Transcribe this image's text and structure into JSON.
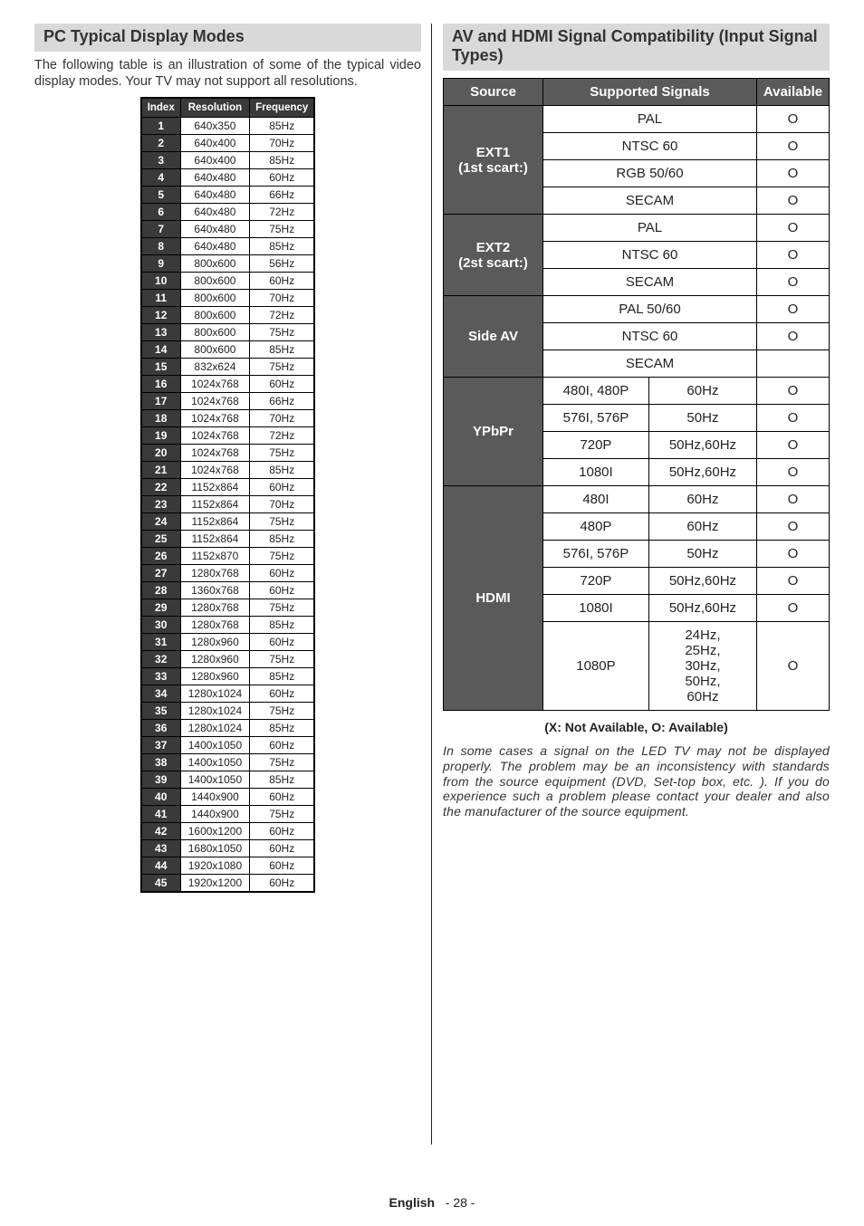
{
  "left": {
    "header": "PC Typical Display Modes",
    "intro": "The following table is an illustration of some of the typical video display modes. Your TV may not support all resolutions.",
    "columns": [
      "Index",
      "Resolution",
      "Frequency"
    ],
    "rows": [
      [
        "1",
        "640x350",
        "85Hz"
      ],
      [
        "2",
        "640x400",
        "70Hz"
      ],
      [
        "3",
        "640x400",
        "85Hz"
      ],
      [
        "4",
        "640x480",
        "60Hz"
      ],
      [
        "5",
        "640x480",
        "66Hz"
      ],
      [
        "6",
        "640x480",
        "72Hz"
      ],
      [
        "7",
        "640x480",
        "75Hz"
      ],
      [
        "8",
        "640x480",
        "85Hz"
      ],
      [
        "9",
        "800x600",
        "56Hz"
      ],
      [
        "10",
        "800x600",
        "60Hz"
      ],
      [
        "11",
        "800x600",
        "70Hz"
      ],
      [
        "12",
        "800x600",
        "72Hz"
      ],
      [
        "13",
        "800x600",
        "75Hz"
      ],
      [
        "14",
        "800x600",
        "85Hz"
      ],
      [
        "15",
        "832x624",
        "75Hz"
      ],
      [
        "16",
        "1024x768",
        "60Hz"
      ],
      [
        "17",
        "1024x768",
        "66Hz"
      ],
      [
        "18",
        "1024x768",
        "70Hz"
      ],
      [
        "19",
        "1024x768",
        "72Hz"
      ],
      [
        "20",
        "1024x768",
        "75Hz"
      ],
      [
        "21",
        "1024x768",
        "85Hz"
      ],
      [
        "22",
        "1152x864",
        "60Hz"
      ],
      [
        "23",
        "1152x864",
        "70Hz"
      ],
      [
        "24",
        "1152x864",
        "75Hz"
      ],
      [
        "25",
        "1152x864",
        "85Hz"
      ],
      [
        "26",
        "1152x870",
        "75Hz"
      ],
      [
        "27",
        "1280x768",
        "60Hz"
      ],
      [
        "28",
        "1360x768",
        "60Hz"
      ],
      [
        "29",
        "1280x768",
        "75Hz"
      ],
      [
        "30",
        "1280x768",
        "85Hz"
      ],
      [
        "31",
        "1280x960",
        "60Hz"
      ],
      [
        "32",
        "1280x960",
        "75Hz"
      ],
      [
        "33",
        "1280x960",
        "85Hz"
      ],
      [
        "34",
        "1280x1024",
        "60Hz"
      ],
      [
        "35",
        "1280x1024",
        "75Hz"
      ],
      [
        "36",
        "1280x1024",
        "85Hz"
      ],
      [
        "37",
        "1400x1050",
        "60Hz"
      ],
      [
        "38",
        "1400x1050",
        "75Hz"
      ],
      [
        "39",
        "1400x1050",
        "85Hz"
      ],
      [
        "40",
        "1440x900",
        "60Hz"
      ],
      [
        "41",
        "1440x900",
        "75Hz"
      ],
      [
        "42",
        "1600x1200",
        "60Hz"
      ],
      [
        "43",
        "1680x1050",
        "60Hz"
      ],
      [
        "44",
        "1920x1080",
        "60Hz"
      ],
      [
        "45",
        "1920x1200",
        "60Hz"
      ]
    ]
  },
  "right": {
    "header": "AV and HDMI Signal Compatibility (Input Signal Types)",
    "columns": [
      "Source",
      "Supported Signals",
      "Available"
    ],
    "groups": [
      {
        "source_lines": [
          "EXT1",
          "(1st scart:)"
        ],
        "rows": [
          {
            "signal": "PAL",
            "avail": "O"
          },
          {
            "signal": "NTSC 60",
            "avail": "O"
          },
          {
            "signal": "RGB 50/60",
            "avail": "O"
          },
          {
            "signal": "SECAM",
            "avail": "O"
          }
        ]
      },
      {
        "source_lines": [
          "EXT2",
          "(2st scart:)"
        ],
        "rows": [
          {
            "signal": "PAL",
            "avail": "O"
          },
          {
            "signal": "NTSC 60",
            "avail": "O"
          },
          {
            "signal": "SECAM",
            "avail": "O"
          }
        ]
      },
      {
        "source_lines": [
          "Side AV"
        ],
        "rows": [
          {
            "signal": "PAL 50/60",
            "avail": "O"
          },
          {
            "signal": "NTSC 60",
            "avail": "O"
          },
          {
            "signal": "SECAM",
            "avail": ""
          }
        ]
      },
      {
        "source_lines": [
          "YPbPr"
        ],
        "rows": [
          {
            "left": "480I, 480P",
            "right": "60Hz",
            "avail": "O"
          },
          {
            "left": "576I, 576P",
            "right": "50Hz",
            "avail": "O"
          },
          {
            "left": "720P",
            "right": "50Hz,60Hz",
            "avail": "O"
          },
          {
            "left": "1080I",
            "right": "50Hz,60Hz",
            "avail": "O"
          }
        ]
      },
      {
        "source_lines": [
          "HDMI"
        ],
        "rows": [
          {
            "left": "480I",
            "right": "60Hz",
            "avail": "O"
          },
          {
            "left": "480P",
            "right": "60Hz",
            "avail": "O"
          },
          {
            "left": "576I, 576P",
            "right": "50Hz",
            "avail": "O"
          },
          {
            "left": "720P",
            "right": "50Hz,60Hz",
            "avail": "O"
          },
          {
            "left": "1080I",
            "right": "50Hz,60Hz",
            "avail": "O"
          },
          {
            "left": "1080P",
            "right": "24Hz, 25Hz, 30Hz, 50Hz, 60Hz",
            "avail": "O"
          }
        ]
      }
    ],
    "legend": "(X: Not Available, O: Available)",
    "note": "In some cases a signal on the LED TV may not be displayed properly. The problem may be an inconsistency with standards from the source equipment (DVD, Set-top box, etc. ). If you do experience such a problem please contact your dealer and also the manufacturer of the source equipment."
  },
  "footer": {
    "lang": "English",
    "page": "- 28 -"
  }
}
